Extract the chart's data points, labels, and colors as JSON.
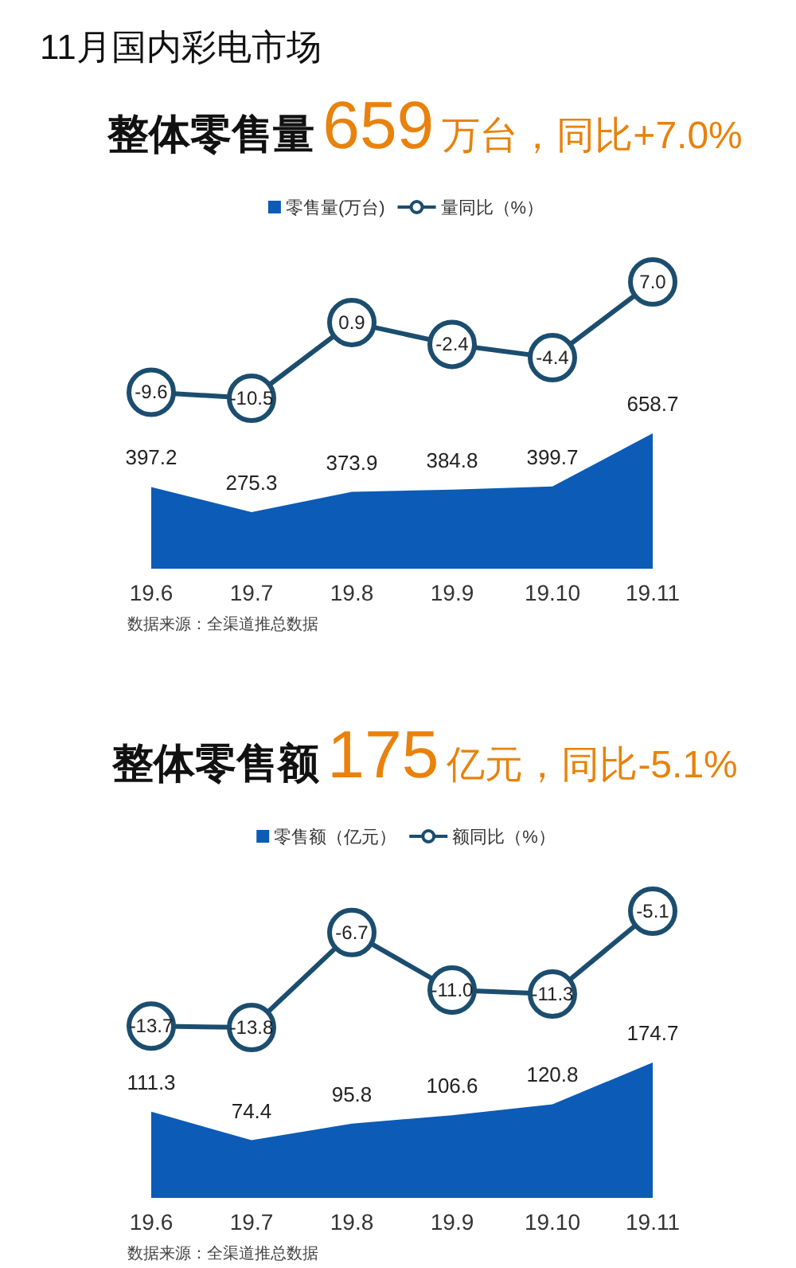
{
  "chart_data": [
    {
      "type": "line",
      "title": "11月国内彩电市场",
      "subtitle": "整体零售量659万台，同比+7.0%",
      "categories": [
        "19.6",
        "19.7",
        "19.8",
        "19.9",
        "19.10",
        "19.11"
      ],
      "tick_labels": false,
      "series": [
        {
          "name": "量同比（%）",
          "marker": "circle",
          "color": "#1b4d6e",
          "values": [
            -9.6,
            -10.5,
            0.9,
            -2.4,
            -4.4,
            7.0
          ],
          "value_labels": [
            "-9.6",
            "-10.5",
            "0.9",
            "-2.4",
            "-4.4",
            "7.0"
          ]
        }
      ],
      "legend": "top"
    },
    {
      "type": "area",
      "categories": [
        "19.6",
        "19.7",
        "19.8",
        "19.9",
        "19.10",
        "19.11"
      ],
      "series": [
        {
          "name": "零售量(万台)",
          "color": "#0c5bb6",
          "values": [
            397.2,
            275.3,
            373.9,
            384.8,
            399.7,
            658.7
          ],
          "value_labels": [
            "397.2",
            "275.3",
            "373.9",
            "384.8",
            "399.7",
            "658.7"
          ]
        }
      ],
      "legend": "top",
      "annotations": [
        "数据来源：全渠道推总数据"
      ]
    },
    {
      "type": "line",
      "subtitle": "整体零售额175亿元，同比-5.1%",
      "categories": [
        "19.6",
        "19.7",
        "19.8",
        "19.9",
        "19.10",
        "19.11"
      ],
      "tick_labels": false,
      "series": [
        {
          "name": "额同比（%）",
          "marker": "circle",
          "color": "#1b4d6e",
          "values": [
            -13.7,
            -13.8,
            -6.7,
            -11.0,
            -11.3,
            -5.1
          ],
          "value_labels": [
            "-13.7",
            "-13.8",
            "-6.7",
            "-11.0",
            "-11.3",
            "-5.1"
          ]
        }
      ],
      "legend": "top"
    },
    {
      "type": "area",
      "categories": [
        "19.6",
        "19.7",
        "19.8",
        "19.9",
        "19.10",
        "19.11"
      ],
      "series": [
        {
          "name": "零售额（亿元）",
          "color": "#0c5bb6",
          "values": [
            111.3,
            74.4,
            95.8,
            106.6,
            120.8,
            174.7
          ],
          "value_labels": [
            "111.3",
            "74.4",
            "95.8",
            "106.6",
            "120.8",
            "174.7"
          ]
        }
      ],
      "legend": "top",
      "annotations": [
        "数据来源：全渠道推总数据"
      ]
    }
  ]
}
